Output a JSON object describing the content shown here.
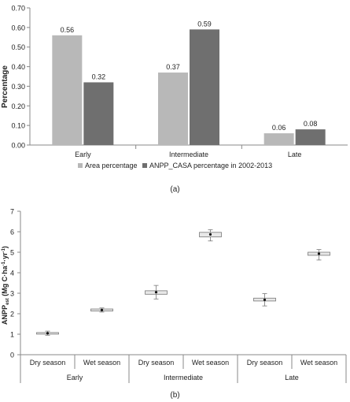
{
  "chart_data": [
    {
      "type": "bar",
      "caption": "(a)",
      "ylabel": "Percentage",
      "ylim": [
        0,
        0.7
      ],
      "yticks": [
        "0.00",
        "0.10",
        "0.20",
        "0.30",
        "0.40",
        "0.50",
        "0.60",
        "0.70"
      ],
      "grid": false,
      "legend_position": "bottom",
      "categories": [
        "Early",
        "Intermediate",
        "Late"
      ],
      "series": [
        {
          "name": "Area  percentage",
          "color": "#b8b8b8",
          "values": [
            0.56,
            0.37,
            0.06
          ],
          "labels": [
            "0.56",
            "0.37",
            "0.06"
          ]
        },
        {
          "name": "ANPP_CASA percentage in 2002-2013",
          "color": "#6f6f6f",
          "values": [
            0.32,
            0.59,
            0.08
          ],
          "labels": [
            "0.32",
            "0.59",
            "0.08"
          ]
        }
      ]
    },
    {
      "type": "box",
      "caption": "(b)",
      "ylabel_main": "ANPP",
      "ylabel_sub": "est",
      "ylabel_unit_1": " (Mg C·ha",
      "ylabel_sup_1": "-1",
      "ylabel_unit_2": "·yr",
      "ylabel_sup_2": "-1",
      "ylabel_close": ")",
      "ylim": [
        0,
        7
      ],
      "yticks": [
        "0",
        "1",
        "2",
        "3",
        "4",
        "5",
        "6",
        "7"
      ],
      "grid": false,
      "groups": [
        "Early",
        "Intermediate",
        "Late"
      ],
      "categories": [
        "Dry season",
        "Wet season",
        "Dry season",
        "Wet season",
        "Dry season",
        "Wet season"
      ],
      "boxes": [
        {
          "mean": 1.05,
          "q1": 1.02,
          "q3": 1.08,
          "low": 0.95,
          "high": 1.15
        },
        {
          "mean": 2.18,
          "q1": 2.13,
          "q3": 2.23,
          "low": 2.08,
          "high": 2.28
        },
        {
          "mean": 3.05,
          "q1": 2.95,
          "q3": 3.12,
          "low": 2.72,
          "high": 3.38
        },
        {
          "mean": 5.87,
          "q1": 5.75,
          "q3": 5.97,
          "low": 5.55,
          "high": 6.1
        },
        {
          "mean": 2.68,
          "q1": 2.62,
          "q3": 2.76,
          "low": 2.38,
          "high": 2.98
        },
        {
          "mean": 4.93,
          "q1": 4.85,
          "q3": 5.0,
          "low": 4.62,
          "high": 5.13
        }
      ]
    }
  ]
}
